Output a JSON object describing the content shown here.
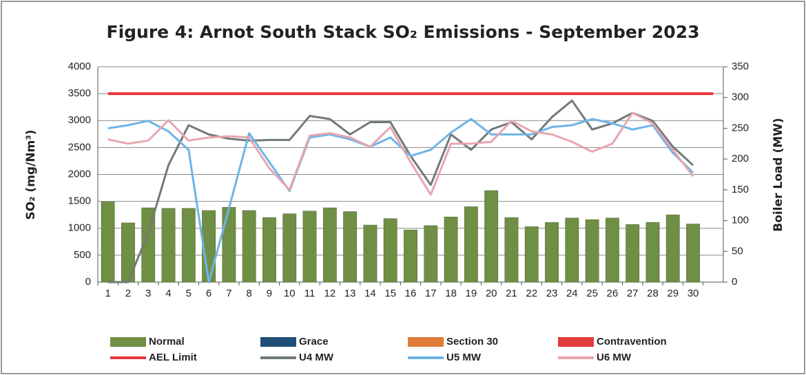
{
  "chart_data": {
    "type": "bar-line",
    "title": "Figure 4: Arnot South Stack SO₂ Emissions -  September 2023",
    "y_label": "SO₂ (mg/Nm³)",
    "y2_label": "Boiler Load (MW)",
    "categories": [
      "1",
      "2",
      "3",
      "4",
      "5",
      "6",
      "7",
      "8",
      "9",
      "10",
      "11",
      "12",
      "13",
      "14",
      "15",
      "16",
      "17",
      "18",
      "19",
      "20",
      "21",
      "22",
      "23",
      "24",
      "25",
      "26",
      "27",
      "28",
      "29",
      "30",
      null
    ],
    "ylim": [
      0,
      4000
    ],
    "yticks": [
      0,
      500,
      1000,
      1500,
      2000,
      2500,
      3000,
      3500,
      4000
    ],
    "y2lim": [
      0,
      350
    ],
    "y2ticks": [
      0,
      50,
      100,
      150,
      200,
      250,
      300,
      350
    ],
    "grid": true,
    "legend": "bottom",
    "series": [
      {
        "name": "Normal",
        "kind": "bar",
        "color": "#6f8f45",
        "values": [
          1490,
          1100,
          1380,
          1370,
          1370,
          1330,
          1390,
          1330,
          1200,
          1270,
          1320,
          1380,
          1310,
          1060,
          1180,
          970,
          1050,
          1210,
          1400,
          1700,
          1200,
          1030,
          1110,
          1190,
          1160,
          1190,
          1070,
          1110,
          1250,
          1080,
          null
        ]
      },
      {
        "name": "Grace",
        "kind": "bar",
        "color": "#1f4e79",
        "values": [
          0,
          0,
          0,
          0,
          0,
          0,
          0,
          0,
          0,
          0,
          0,
          0,
          0,
          0,
          0,
          0,
          0,
          0,
          0,
          0,
          0,
          0,
          0,
          0,
          0,
          0,
          0,
          0,
          0,
          0,
          null
        ]
      },
      {
        "name": "Section 30",
        "kind": "bar",
        "color": "#e07b39",
        "values": [
          0,
          0,
          0,
          0,
          0,
          0,
          0,
          0,
          0,
          0,
          0,
          0,
          0,
          0,
          0,
          0,
          0,
          0,
          0,
          0,
          0,
          0,
          0,
          0,
          0,
          0,
          0,
          0,
          0,
          0,
          null
        ]
      },
      {
        "name": "Contravention",
        "kind": "bar",
        "color": "#e03c3c",
        "values": [
          0,
          0,
          0,
          0,
          0,
          0,
          0,
          0,
          0,
          0,
          0,
          0,
          0,
          0,
          0,
          0,
          0,
          0,
          0,
          0,
          0,
          0,
          0,
          0,
          0,
          0,
          0,
          0,
          0,
          0,
          null
        ]
      },
      {
        "name": "AEL Limit",
        "kind": "line",
        "color": "#e8333b",
        "values": [
          3500,
          3500,
          3500,
          3500,
          3500,
          3500,
          3500,
          3500,
          3500,
          3500,
          3500,
          3500,
          3500,
          3500,
          3500,
          3500,
          3500,
          3500,
          3500,
          3500,
          3500,
          3500,
          3500,
          3500,
          3500,
          3500,
          3500,
          3500,
          3500,
          3500,
          3500
        ]
      },
      {
        "name": "U4 MW",
        "kind": "line",
        "axis": "y2",
        "color": "#707a78",
        "values": [
          0,
          0,
          80,
          190,
          255,
          240,
          233,
          230,
          231,
          231,
          270,
          265,
          240,
          260,
          260,
          205,
          158,
          240,
          215,
          248,
          260,
          232,
          268,
          295,
          248,
          258,
          275,
          262,
          220,
          190,
          null
        ]
      },
      {
        "name": "U5 MW",
        "kind": "line",
        "axis": "y2",
        "color": "#6cb4e8",
        "values": [
          250,
          255,
          262,
          245,
          215,
          0,
          120,
          242,
          195,
          148,
          235,
          240,
          232,
          220,
          235,
          205,
          215,
          243,
          265,
          240,
          240,
          240,
          252,
          255,
          265,
          258,
          248,
          255,
          210,
          178,
          null
        ]
      },
      {
        "name": "U6 MW",
        "kind": "line",
        "axis": "y2",
        "color": "#e8a5b0",
        "values": [
          232,
          225,
          230,
          263,
          230,
          235,
          237,
          235,
          185,
          150,
          238,
          242,
          235,
          220,
          252,
          195,
          142,
          225,
          225,
          228,
          262,
          245,
          240,
          228,
          212,
          225,
          275,
          258,
          215,
          172,
          null
        ]
      }
    ]
  }
}
